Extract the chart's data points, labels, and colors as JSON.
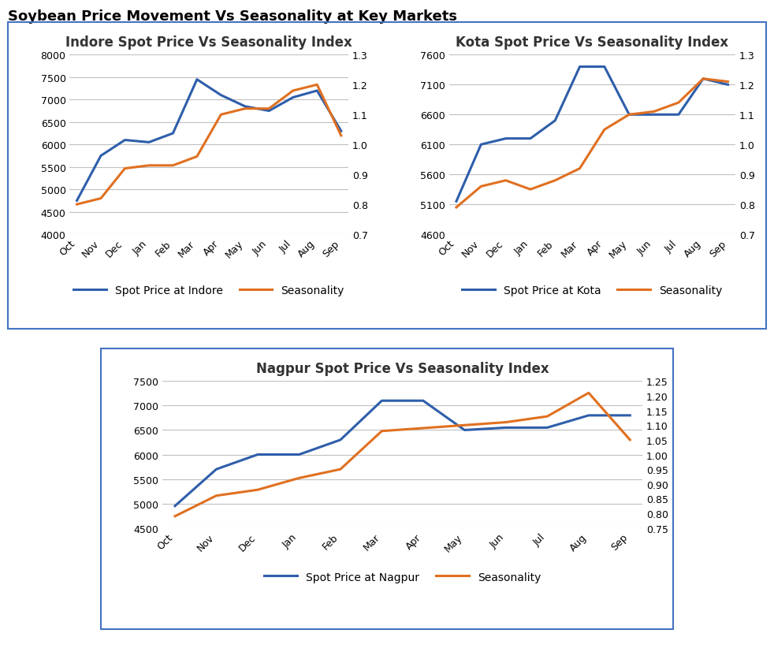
{
  "title": "Soybean Price Movement Vs Seasonality at Key Markets",
  "months": [
    "Oct",
    "Nov",
    "Dec",
    "Jan",
    "Feb",
    "Mar",
    "Apr",
    "May",
    "Jun",
    "Jul",
    "Aug",
    "Sep"
  ],
  "indore": {
    "title": "Indore Spot Price Vs Seasonality Index",
    "spot_price": [
      4750,
      5750,
      6100,
      6050,
      6250,
      7450,
      7100,
      6850,
      6750,
      7050,
      7200,
      6300
    ],
    "seasonality": [
      0.8,
      0.82,
      0.92,
      0.93,
      0.93,
      0.96,
      1.1,
      1.12,
      1.12,
      1.18,
      1.2,
      1.03
    ],
    "ylim_left": [
      4000,
      8000
    ],
    "ylim_right": [
      0.7,
      1.3
    ],
    "yticks_left": [
      4000,
      4500,
      5000,
      5500,
      6000,
      6500,
      7000,
      7500,
      8000
    ],
    "yticks_right": [
      0.7,
      0.8,
      0.9,
      1.0,
      1.1,
      1.2,
      1.3
    ],
    "legend_label_price": "Spot Price at Indore"
  },
  "kota": {
    "title": "Kota Spot Price Vs Seasonality Index",
    "spot_price": [
      5150,
      6100,
      6200,
      6200,
      6500,
      7400,
      7400,
      6600,
      6600,
      6600,
      7200,
      7100
    ],
    "seasonality": [
      0.79,
      0.86,
      0.88,
      0.85,
      0.88,
      0.92,
      1.05,
      1.1,
      1.11,
      1.14,
      1.22,
      1.21
    ],
    "ylim_left": [
      4600,
      7600
    ],
    "ylim_right": [
      0.7,
      1.3
    ],
    "yticks_left": [
      4600,
      5100,
      5600,
      6100,
      6600,
      7100,
      7600
    ],
    "yticks_right": [
      0.7,
      0.8,
      0.9,
      1.0,
      1.1,
      1.2,
      1.3
    ],
    "legend_label_price": "Spot Price at Kota"
  },
  "nagpur": {
    "title": "Nagpur Spot Price Vs Seasonality Index",
    "spot_price": [
      4950,
      5700,
      6000,
      6000,
      6300,
      7100,
      7100,
      6500,
      6550,
      6550,
      6800,
      6800
    ],
    "seasonality": [
      0.79,
      0.86,
      0.88,
      0.92,
      0.95,
      1.08,
      1.09,
      1.1,
      1.11,
      1.13,
      1.21,
      1.05
    ],
    "ylim_left": [
      4500,
      7500
    ],
    "ylim_right": [
      0.75,
      1.25
    ],
    "yticks_left": [
      4500,
      5000,
      5500,
      6000,
      6500,
      7000,
      7500
    ],
    "yticks_right": [
      0.75,
      0.8,
      0.85,
      0.9,
      0.95,
      1.0,
      1.05,
      1.1,
      1.15,
      1.2,
      1.25
    ],
    "legend_label_price": "Spot Price at Nagpur"
  },
  "color_price": "#2E5EAA",
  "color_seasonality": "#E07020",
  "box_color": "#4472C4",
  "title_fontsize": 13,
  "subplot_title_fontsize": 12,
  "tick_fontsize": 9,
  "legend_fontsize": 10
}
